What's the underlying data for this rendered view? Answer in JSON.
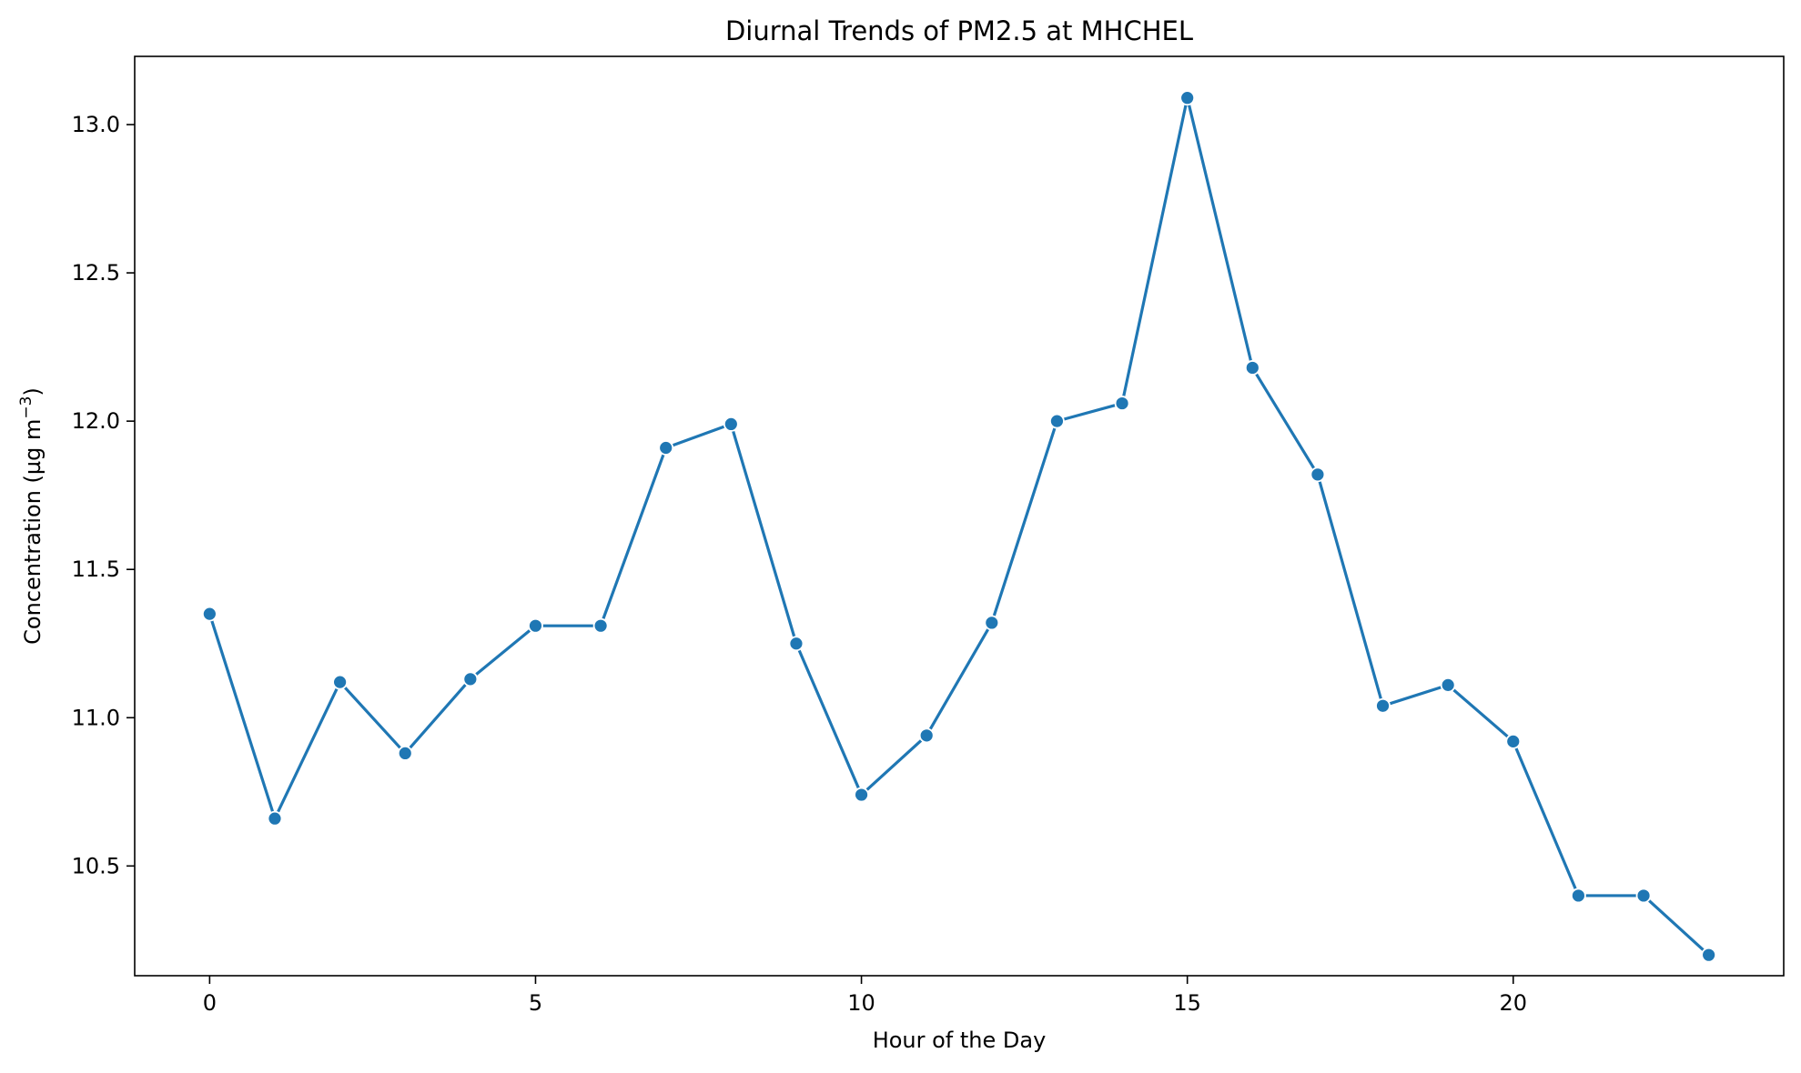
{
  "chart_data": {
    "type": "line",
    "title": "Diurnal Trends of PM2.5 at MHCHEL",
    "xlabel": "Hour of the Day",
    "ylabel_prefix": "Concentration (µg m",
    "ylabel_exponent": "−3",
    "ylabel_suffix": ")",
    "xlim": [
      -1.15,
      24.15
    ],
    "ylim": [
      10.13,
      13.23
    ],
    "x_ticks": [
      0,
      5,
      10,
      15,
      20
    ],
    "x_tick_labels": [
      "0",
      "5",
      "10",
      "15",
      "20"
    ],
    "y_ticks": [
      10.5,
      11.0,
      11.5,
      12.0,
      12.5,
      13.0
    ],
    "y_tick_labels": [
      "10.5",
      "11.0",
      "11.5",
      "12.0",
      "12.5",
      "13.0"
    ],
    "grid": false,
    "legend": "none",
    "series": [
      {
        "color": "#1f77b4",
        "marker": "circle",
        "x": [
          0,
          1,
          2,
          3,
          4,
          5,
          6,
          7,
          8,
          9,
          10,
          11,
          12,
          13,
          14,
          15,
          16,
          17,
          18,
          19,
          20,
          21,
          22,
          23
        ],
        "values": [
          11.35,
          10.66,
          11.12,
          10.88,
          11.13,
          11.31,
          11.31,
          11.91,
          11.99,
          11.25,
          10.74,
          10.94,
          11.32,
          12.0,
          12.06,
          13.09,
          12.18,
          11.82,
          11.04,
          11.11,
          10.92,
          10.4,
          10.4,
          10.2
        ]
      }
    ]
  }
}
